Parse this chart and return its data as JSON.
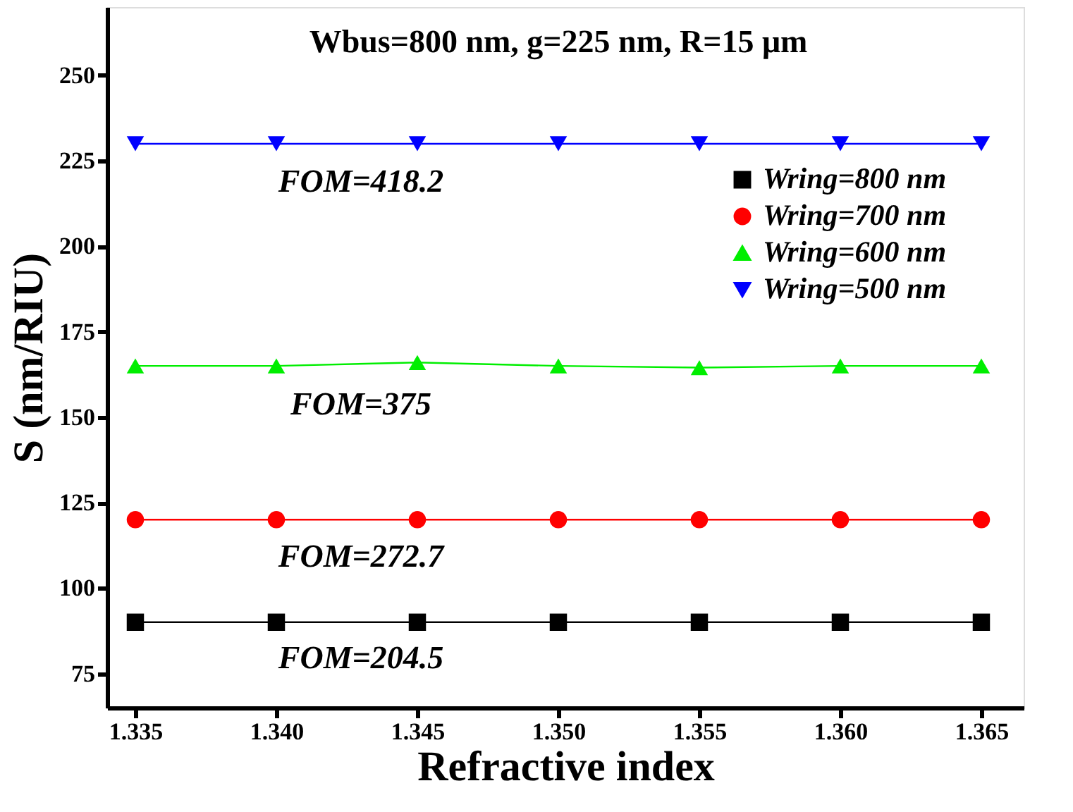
{
  "chart_data": {
    "type": "line",
    "xlabel": "Refractive index",
    "ylabel": "S (nm/RIU)",
    "x": [
      1.335,
      1.34,
      1.345,
      1.35,
      1.355,
      1.36,
      1.365
    ],
    "xlim": [
      1.334,
      1.3665
    ],
    "xticks": [
      {
        "value": 1.335,
        "label": "1.335"
      },
      {
        "value": 1.34,
        "label": "1.340"
      },
      {
        "value": 1.345,
        "label": "1.345"
      },
      {
        "value": 1.35,
        "label": "1.350"
      },
      {
        "value": 1.355,
        "label": "1.355"
      },
      {
        "value": 1.36,
        "label": "1.360"
      },
      {
        "value": 1.365,
        "label": "1.365"
      }
    ],
    "ylim": [
      65,
      270
    ],
    "yticks": [
      75,
      100,
      125,
      150,
      175,
      200,
      225,
      250
    ],
    "grid": false,
    "legend": "top right",
    "line_style": "solid",
    "series": [
      {
        "name": "Wring=800 nm",
        "color": "#000000",
        "marker": "square",
        "values": [
          90,
          90,
          90,
          90,
          90,
          90,
          90
        ]
      },
      {
        "name": "Wring=700 nm",
        "color": "#ff0000",
        "marker": "circle",
        "values": [
          120,
          120,
          120,
          120,
          120,
          120,
          120
        ]
      },
      {
        "name": "Wring=600 nm",
        "color": "#00ee00",
        "marker": "triangle",
        "values": [
          165,
          165,
          166,
          165,
          164.5,
          165,
          165
        ]
      },
      {
        "name": "Wring=500 nm",
        "color": "#0000ff",
        "marker": "triangle-down",
        "values": [
          230,
          230,
          230,
          230,
          230,
          230,
          230
        ]
      }
    ],
    "annotations": [
      "Wbus=800 nm, g=225 nm, R=15 μm",
      "FOM=418.2",
      "FOM=375",
      "FOM=272.7",
      "FOM=204.5"
    ]
  }
}
